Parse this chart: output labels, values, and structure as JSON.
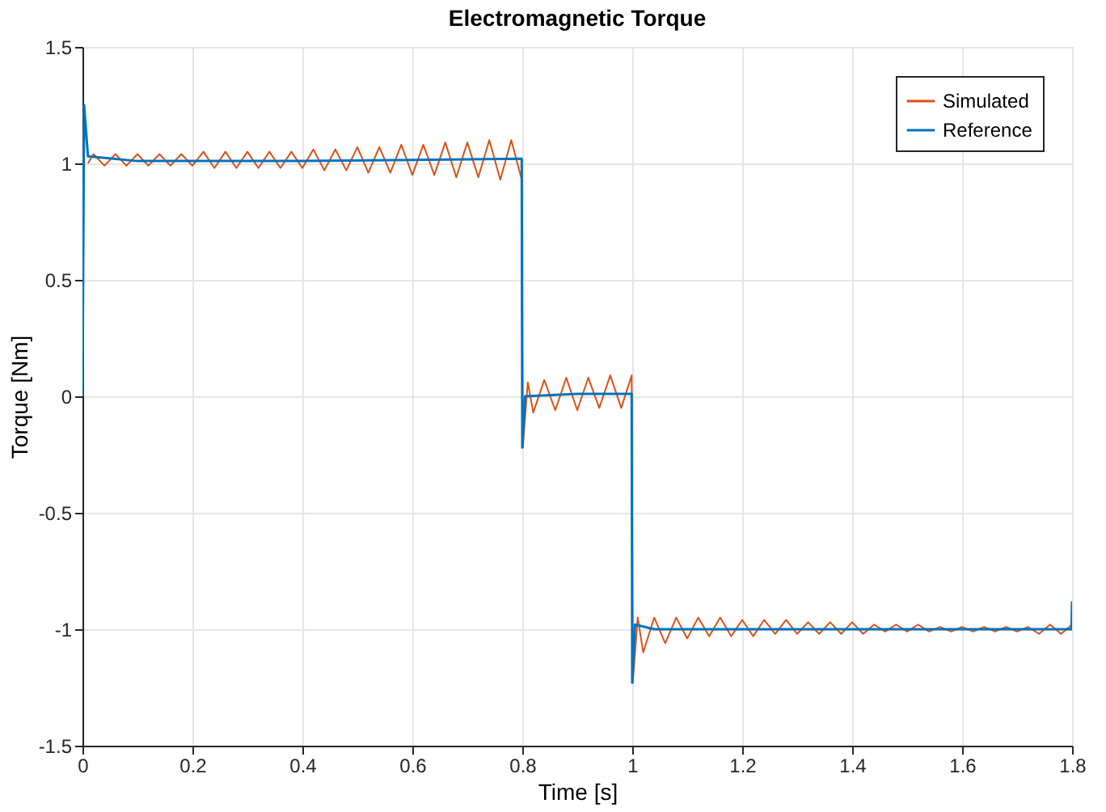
{
  "chart_data": {
    "type": "line",
    "title": "Electromagnetic Torque",
    "xlabel": "Time [s]",
    "ylabel": "Torque [Nm]",
    "xlim": [
      0,
      1.8
    ],
    "xticks": [
      0,
      0.2,
      0.4,
      0.6,
      0.8,
      1,
      1.2,
      1.4,
      1.6,
      1.8
    ],
    "ylim": [
      -1.5,
      1.5
    ],
    "yticks": [
      -1.5,
      -1,
      -0.5,
      0,
      0.5,
      1,
      1.5
    ],
    "grid": true,
    "legend": "top right",
    "line_style": "solid",
    "marker": "none",
    "series": [
      {
        "name": "Simulated",
        "color": "#d95319",
        "x": [
          0.01,
          0.02,
          0.04,
          0.06,
          0.08,
          0.1,
          0.12,
          0.14,
          0.16,
          0.18,
          0.2,
          0.22,
          0.24,
          0.26,
          0.28,
          0.3,
          0.32,
          0.34,
          0.36,
          0.38,
          0.4,
          0.42,
          0.44,
          0.46,
          0.48,
          0.5,
          0.52,
          0.54,
          0.56,
          0.58,
          0.6,
          0.62,
          0.64,
          0.66,
          0.68,
          0.7,
          0.72,
          0.74,
          0.76,
          0.78,
          0.799,
          0.801,
          0.81,
          0.82,
          0.84,
          0.86,
          0.88,
          0.9,
          0.92,
          0.94,
          0.96,
          0.98,
          0.999,
          1.001,
          1.01,
          1.02,
          1.04,
          1.06,
          1.08,
          1.1,
          1.12,
          1.14,
          1.16,
          1.18,
          1.2,
          1.22,
          1.24,
          1.26,
          1.28,
          1.3,
          1.32,
          1.34,
          1.36,
          1.38,
          1.4,
          1.42,
          1.44,
          1.46,
          1.48,
          1.5,
          1.52,
          1.54,
          1.56,
          1.58,
          1.6,
          1.62,
          1.64,
          1.66,
          1.68,
          1.7,
          1.72,
          1.74,
          1.76,
          1.78,
          1.8
        ],
        "values": [
          1.0,
          1.04,
          0.99,
          1.04,
          0.99,
          1.04,
          0.99,
          1.04,
          0.99,
          1.04,
          0.99,
          1.05,
          0.98,
          1.05,
          0.98,
          1.05,
          0.98,
          1.05,
          0.98,
          1.05,
          0.98,
          1.06,
          0.97,
          1.06,
          0.97,
          1.07,
          0.96,
          1.07,
          0.96,
          1.08,
          0.95,
          1.08,
          0.95,
          1.09,
          0.94,
          1.09,
          0.94,
          1.1,
          0.93,
          1.1,
          0.93,
          -0.22,
          0.06,
          -0.07,
          0.07,
          -0.06,
          0.08,
          -0.06,
          0.08,
          -0.05,
          0.09,
          -0.05,
          0.09,
          -1.23,
          -0.95,
          -1.1,
          -0.95,
          -1.06,
          -0.95,
          -1.04,
          -0.95,
          -1.03,
          -0.95,
          -1.03,
          -0.96,
          -1.03,
          -0.96,
          -1.02,
          -0.96,
          -1.02,
          -0.97,
          -1.02,
          -0.97,
          -1.02,
          -0.97,
          -1.02,
          -0.98,
          -1.01,
          -0.98,
          -1.01,
          -0.98,
          -1.01,
          -0.99,
          -1.01,
          -0.99,
          -1.01,
          -0.99,
          -1.01,
          -0.99,
          -1.01,
          -0.99,
          -1.02,
          -0.98,
          -1.02,
          -0.98
        ]
      },
      {
        "name": "Reference",
        "color": "#0072bd",
        "x": [
          0,
          0.003,
          0.01,
          0.1,
          0.4,
          0.799,
          0.8,
          0.805,
          0.9,
          0.999,
          1.0,
          1.005,
          1.04,
          1.1,
          1.799,
          1.8
        ],
        "values": [
          0,
          1.25,
          1.03,
          1.01,
          1.01,
          1.02,
          -0.22,
          0.0,
          0.01,
          0.01,
          -1.23,
          -0.98,
          -1.0,
          -1.0,
          -1.0,
          -0.88
        ]
      }
    ]
  }
}
